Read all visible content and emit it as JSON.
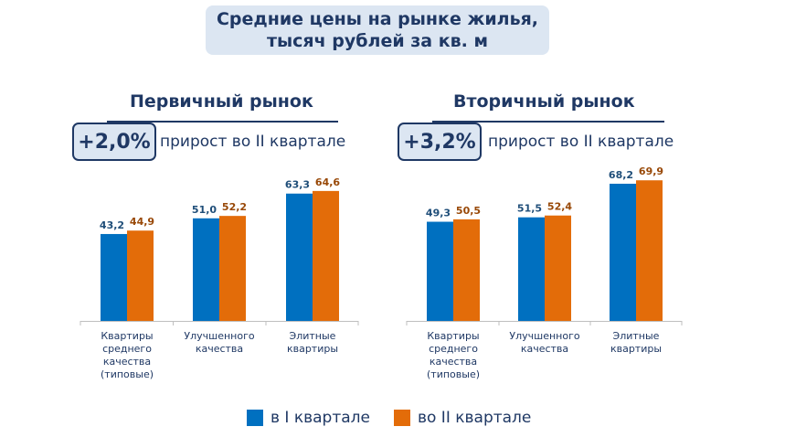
{
  "title": {
    "line1": "Средние цены на рынке жилья,",
    "line2": "тысяч рублей за кв. м"
  },
  "colors": {
    "series1": "#0070c0",
    "series2": "#e36c09",
    "label1": "#1f4e79",
    "label2": "#984807"
  },
  "legend": {
    "series1": "в I квартале",
    "series2": "во II квартале"
  },
  "panels": [
    {
      "title": "Первичный рынок",
      "growth": "+2,0%",
      "growth_text": "прирост во II квартале"
    },
    {
      "title": "Вторичный рынок",
      "growth": "+3,2%",
      "growth_text": "прирост во II квартале"
    }
  ],
  "chart_data": [
    {
      "type": "bar",
      "title": "Первичный рынок",
      "categories": [
        [
          "Квартиры",
          "среднего",
          "качества",
          "(типовые)"
        ],
        [
          "Улучшенного",
          "качества"
        ],
        [
          "Элитные",
          "квартиры"
        ]
      ],
      "series": [
        {
          "name": "в I квартале",
          "values": [
            43.2,
            51.0,
            63.3
          ],
          "labels": [
            "43,2",
            "51,0",
            "63,3"
          ]
        },
        {
          "name": "во II квартале",
          "values": [
            44.9,
            52.2,
            64.6
          ],
          "labels": [
            "44,9",
            "52,2",
            "64,6"
          ]
        }
      ],
      "ylim": [
        0,
        70
      ]
    },
    {
      "type": "bar",
      "title": "Вторичный рынок",
      "categories": [
        [
          "Квартиры",
          "среднего",
          "качества",
          "(типовые)"
        ],
        [
          "Улучшенного",
          "качества"
        ],
        [
          "Элитные",
          "квартиры"
        ]
      ],
      "series": [
        {
          "name": "в I квартале",
          "values": [
            49.3,
            51.5,
            68.2
          ],
          "labels": [
            "49,3",
            "51,5",
            "68,2"
          ]
        },
        {
          "name": "во II квартале",
          "values": [
            50.5,
            52.4,
            69.9
          ],
          "labels": [
            "50,5",
            "52,4",
            "69,9"
          ]
        }
      ],
      "ylim": [
        0,
        70
      ]
    }
  ]
}
